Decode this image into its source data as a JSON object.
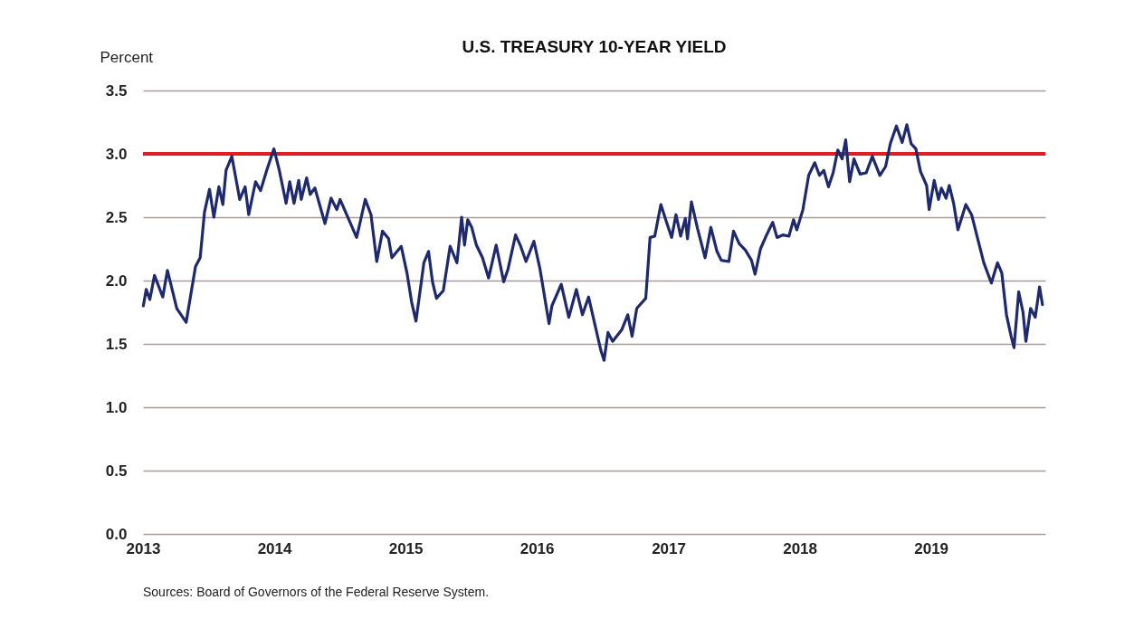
{
  "chart_data": {
    "type": "line",
    "title": "U.S. TREASURY 10-YEAR YIELD",
    "ylabel": "Percent",
    "annotations": [
      "Sources: Board of Governors of the Federal Reserve System."
    ],
    "x": [
      "2013-01-02",
      "2013-01-10",
      "2013-01-20",
      "2013-02-02",
      "2013-02-25",
      "2013-03-10",
      "2013-04-05",
      "2013-05-01",
      "2013-05-27",
      "2013-06-09",
      "2013-06-21",
      "2013-07-05",
      "2013-07-17",
      "2013-07-31",
      "2013-08-11",
      "2013-08-20",
      "2013-09-05",
      "2013-09-27",
      "2013-10-12",
      "2013-10-22",
      "2013-11-10",
      "2013-11-24",
      "2013-12-11",
      "2013-12-31",
      "2014-01-15",
      "2014-02-03",
      "2014-02-13",
      "2014-02-25",
      "2014-03-10",
      "2014-03-17",
      "2014-04-01",
      "2014-04-11",
      "2014-04-24",
      "2014-05-22",
      "2014-06-08",
      "2014-06-24",
      "2014-07-03",
      "2014-07-29",
      "2014-08-18",
      "2014-08-27",
      "2014-09-11",
      "2014-09-27",
      "2014-10-13",
      "2014-10-29",
      "2014-11-15",
      "2014-11-24",
      "2014-12-20",
      "2015-01-05",
      "2015-01-18",
      "2015-01-30",
      "2015-02-13",
      "2015-02-21",
      "2015-03-06",
      "2015-03-17",
      "2015-03-28",
      "2015-04-16",
      "2015-05-05",
      "2015-05-24",
      "2015-06-06",
      "2015-06-14",
      "2015-06-23",
      "2015-07-04",
      "2015-07-17",
      "2015-08-03",
      "2015-08-20",
      "2015-09-10",
      "2015-10-01",
      "2015-10-13",
      "2015-11-03",
      "2015-11-16",
      "2015-12-02",
      "2015-12-24",
      "2016-01-10",
      "2016-02-04",
      "2016-02-12",
      "2016-03-09",
      "2016-03-30",
      "2016-04-20",
      "2016-05-07",
      "2016-05-24",
      "2016-06-10",
      "2016-06-27",
      "2016-07-06",
      "2016-07-17",
      "2016-07-30",
      "2016-08-24",
      "2016-09-10",
      "2016-09-22",
      "2016-10-05",
      "2016-10-30",
      "2016-11-11",
      "2016-11-24",
      "2016-12-11",
      "2016-12-28",
      "2017-01-10",
      "2017-01-22",
      "2017-02-04",
      "2017-02-17",
      "2017-02-23",
      "2017-03-06",
      "2017-03-23",
      "2017-04-13",
      "2017-04-29",
      "2017-05-16",
      "2017-05-28",
      "2017-06-18",
      "2017-07-01",
      "2017-07-17",
      "2017-08-03",
      "2017-08-20",
      "2017-08-30",
      "2017-09-14",
      "2017-10-01",
      "2017-10-18",
      "2017-10-30",
      "2017-11-16",
      "2017-12-02",
      "2017-12-15",
      "2017-12-24",
      "2018-01-10",
      "2018-01-26",
      "2018-02-12",
      "2018-02-25",
      "2018-03-09",
      "2018-03-22",
      "2018-04-04",
      "2018-04-17",
      "2018-04-29",
      "2018-05-09",
      "2018-05-20",
      "2018-06-01",
      "2018-06-18",
      "2018-07-05",
      "2018-07-22",
      "2018-08-12",
      "2018-08-28",
      "2018-09-10",
      "2018-09-27",
      "2018-10-13",
      "2018-10-26",
      "2018-11-07",
      "2018-11-20",
      "2018-12-03",
      "2018-12-20",
      "2018-12-27",
      "2019-01-10",
      "2019-01-22",
      "2019-01-30",
      "2019-02-12",
      "2019-02-21",
      "2019-03-05",
      "2019-03-17",
      "2019-04-08",
      "2019-04-24",
      "2019-05-11",
      "2019-05-28",
      "2019-06-18",
      "2019-07-05",
      "2019-07-17",
      "2019-07-30",
      "2019-08-12",
      "2019-08-20",
      "2019-09-02",
      "2019-09-14",
      "2019-09-22",
      "2019-10-05",
      "2019-10-18",
      "2019-10-30",
      "2019-11-07"
    ],
    "series": [
      {
        "color": "#1f2a6e",
        "values": [
          1.8,
          1.93,
          1.85,
          2.04,
          1.87,
          2.08,
          1.78,
          1.67,
          2.11,
          2.18,
          2.54,
          2.72,
          2.5,
          2.74,
          2.6,
          2.87,
          2.98,
          2.64,
          2.74,
          2.52,
          2.78,
          2.71,
          2.87,
          3.04,
          2.87,
          2.61,
          2.78,
          2.61,
          2.79,
          2.64,
          2.81,
          2.68,
          2.73,
          2.45,
          2.65,
          2.56,
          2.64,
          2.47,
          2.34,
          2.45,
          2.64,
          2.52,
          2.15,
          2.39,
          2.33,
          2.18,
          2.27,
          2.06,
          1.83,
          1.68,
          1.97,
          2.14,
          2.23,
          1.99,
          1.86,
          1.92,
          2.27,
          2.14,
          2.5,
          2.28,
          2.48,
          2.42,
          2.28,
          2.18,
          2.02,
          2.28,
          1.99,
          2.09,
          2.36,
          2.28,
          2.15,
          2.31,
          2.09,
          1.66,
          1.8,
          1.97,
          1.71,
          1.93,
          1.73,
          1.87,
          1.66,
          1.45,
          1.37,
          1.59,
          1.52,
          1.61,
          1.73,
          1.56,
          1.78,
          1.86,
          2.34,
          2.35,
          2.6,
          2.45,
          2.34,
          2.52,
          2.35,
          2.49,
          2.33,
          2.62,
          2.41,
          2.18,
          2.42,
          2.23,
          2.16,
          2.15,
          2.39,
          2.29,
          2.24,
          2.16,
          2.05,
          2.25,
          2.36,
          2.46,
          2.34,
          2.36,
          2.35,
          2.48,
          2.4,
          2.56,
          2.83,
          2.93,
          2.83,
          2.87,
          2.74,
          2.85,
          3.03,
          2.96,
          3.11,
          2.78,
          2.96,
          2.84,
          2.85,
          2.98,
          2.83,
          2.9,
          3.08,
          3.22,
          3.09,
          3.23,
          3.08,
          3.04,
          2.86,
          2.75,
          2.56,
          2.79,
          2.64,
          2.73,
          2.65,
          2.75,
          2.61,
          2.4,
          2.6,
          2.52,
          2.33,
          2.14,
          1.98,
          2.14,
          2.06,
          1.73,
          1.56,
          1.47,
          1.91,
          1.75,
          1.52,
          1.78,
          1.71,
          1.95,
          1.81
        ]
      }
    ],
    "xlim": [
      "2013-01-01",
      "2019-11-15"
    ],
    "xticks": [
      "2013",
      "2014",
      "2015",
      "2016",
      "2017",
      "2018",
      "2019"
    ],
    "ylim": [
      0,
      3.5
    ],
    "yticks": [
      {
        "value": 0,
        "label": "0.0"
      },
      {
        "value": 0.5,
        "label": "0.5"
      },
      {
        "value": 1,
        "label": "1.0"
      },
      {
        "value": 1.5,
        "label": "1.5"
      },
      {
        "value": 2,
        "label": "2.0"
      },
      {
        "value": 2.5,
        "label": "2.5"
      },
      {
        "value": 3,
        "label": "3.0"
      },
      {
        "value": 3.5,
        "label": "3.5"
      }
    ],
    "ref_lines": [
      {
        "axis": "y",
        "value": 3,
        "color": "#e31b23"
      }
    ],
    "grid": "y",
    "marker": "none",
    "line_style": "solid"
  }
}
